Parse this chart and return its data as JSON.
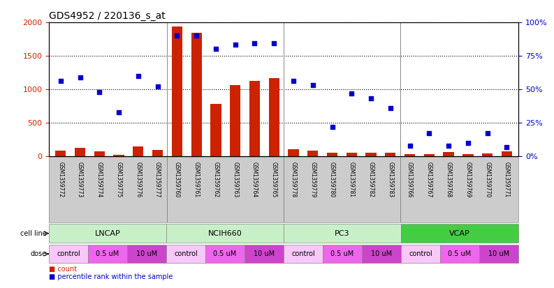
{
  "title": "GDS4952 / 220136_s_at",
  "samples": [
    "GSM1359772",
    "GSM1359773",
    "GSM1359774",
    "GSM1359775",
    "GSM1359776",
    "GSM1359777",
    "GSM1359760",
    "GSM1359761",
    "GSM1359762",
    "GSM1359763",
    "GSM1359764",
    "GSM1359765",
    "GSM1359778",
    "GSM1359779",
    "GSM1359780",
    "GSM1359781",
    "GSM1359782",
    "GSM1359783",
    "GSM1359766",
    "GSM1359767",
    "GSM1359768",
    "GSM1359769",
    "GSM1359770",
    "GSM1359771"
  ],
  "counts": [
    90,
    130,
    75,
    25,
    150,
    95,
    1930,
    1840,
    780,
    1060,
    1120,
    1160,
    110,
    85,
    50,
    50,
    50,
    50,
    30,
    30,
    60,
    30,
    40,
    70
  ],
  "percentiles": [
    56,
    59,
    48,
    33,
    60,
    52,
    90,
    90,
    80,
    83,
    84,
    84,
    56,
    53,
    22,
    47,
    43,
    36,
    8,
    17,
    8,
    10,
    17,
    7
  ],
  "cell_line_groups": [
    {
      "name": "LNCAP",
      "start": 0,
      "end": 6,
      "color": "#c8f0c8"
    },
    {
      "name": "NCIH660",
      "start": 6,
      "end": 12,
      "color": "#c8f0c8"
    },
    {
      "name": "PC3",
      "start": 12,
      "end": 18,
      "color": "#c8f0c8"
    },
    {
      "name": "VCAP",
      "start": 18,
      "end": 24,
      "color": "#44cc44"
    }
  ],
  "dose_groups": [
    {
      "label": "control",
      "start": 0,
      "end": 2,
      "color": "#f8c8f8"
    },
    {
      "label": "0.5 uM",
      "start": 2,
      "end": 4,
      "color": "#ee66ee"
    },
    {
      "label": "10 uM",
      "start": 4,
      "end": 6,
      "color": "#cc44cc"
    },
    {
      "label": "control",
      "start": 6,
      "end": 8,
      "color": "#f8c8f8"
    },
    {
      "label": "0.5 uM",
      "start": 8,
      "end": 10,
      "color": "#ee66ee"
    },
    {
      "label": "10 uM",
      "start": 10,
      "end": 12,
      "color": "#cc44cc"
    },
    {
      "label": "control",
      "start": 12,
      "end": 14,
      "color": "#f8c8f8"
    },
    {
      "label": "0.5 uM",
      "start": 14,
      "end": 16,
      "color": "#ee66ee"
    },
    {
      "label": "10 uM",
      "start": 16,
      "end": 18,
      "color": "#cc44cc"
    },
    {
      "label": "control",
      "start": 18,
      "end": 20,
      "color": "#f8c8f8"
    },
    {
      "label": "0.5 uM",
      "start": 20,
      "end": 22,
      "color": "#ee66ee"
    },
    {
      "label": "10 uM",
      "start": 22,
      "end": 24,
      "color": "#cc44cc"
    }
  ],
  "bar_color": "#cc2200",
  "dot_color": "#0000cc",
  "ylim_left": [
    0,
    2000
  ],
  "ylim_right": [
    0,
    100
  ],
  "yticks_left": [
    0,
    500,
    1000,
    1500,
    2000
  ],
  "yticks_right": [
    0,
    25,
    50,
    75,
    100
  ],
  "ytick_labels_right": [
    "0%",
    "25%",
    "50%",
    "75%",
    "100%"
  ],
  "bg_color": "#ffffff",
  "group_boundaries": [
    6,
    12,
    18
  ],
  "title_fontsize": 10,
  "axis_tick_fontsize": 8,
  "label_fontsize": 8,
  "sample_fontsize": 5.5,
  "legend_fontsize": 7
}
